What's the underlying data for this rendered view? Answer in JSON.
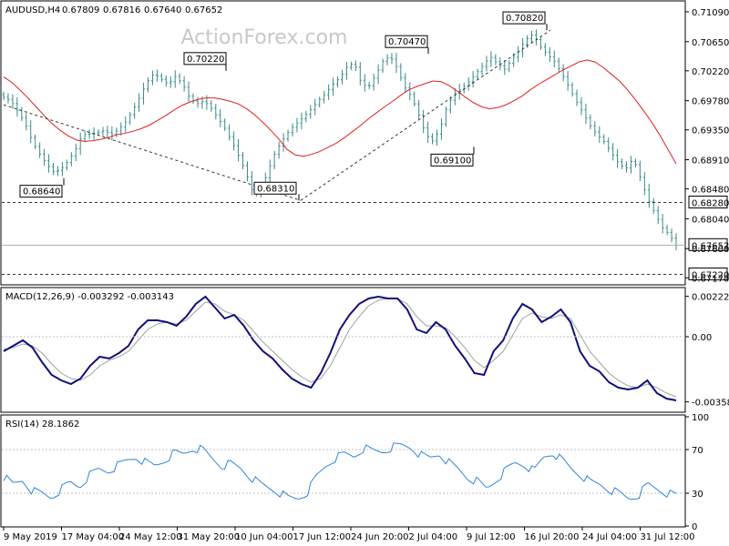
{
  "watermark": "ActionForex.com",
  "chart_data": [
    {
      "type": "candlestick",
      "symbol_label": "AUDUSD,H4",
      "ohlc_label": [
        "0.67809",
        "0.67816",
        "0.67640",
        "0.67652"
      ],
      "ylim": [
        0.6708,
        0.7121
      ],
      "yticks": [
        "0.71090",
        "0.70650",
        "0.70220",
        "0.69780",
        "0.69350",
        "0.68910",
        "0.68480",
        "0.68040",
        "0.67600",
        "0.67170"
      ],
      "y_values": [
        0.7109,
        0.7065,
        0.7022,
        0.6978,
        0.6935,
        0.6891,
        0.6848,
        0.6804,
        0.676,
        0.6717
      ],
      "close_path": [
        0.6983,
        0.6978,
        0.6962,
        0.6945,
        0.6918,
        0.69,
        0.6885,
        0.6873,
        0.6877,
        0.6889,
        0.6905,
        0.6928,
        0.6929,
        0.6931,
        0.6934,
        0.6928,
        0.6935,
        0.6946,
        0.6963,
        0.6983,
        0.7005,
        0.7018,
        0.701,
        0.7002,
        0.7014,
        0.7003,
        0.6982,
        0.6973,
        0.6978,
        0.6967,
        0.6952,
        0.6936,
        0.6916,
        0.6893,
        0.6868,
        0.6838,
        0.6848,
        0.6876,
        0.6903,
        0.692,
        0.6935,
        0.6945,
        0.6955,
        0.6966,
        0.6978,
        0.6989,
        0.7002,
        0.7012,
        0.7028,
        0.7034,
        0.7003,
        0.6998,
        0.7016,
        0.7036,
        0.7044,
        0.7026,
        0.6999,
        0.6984,
        0.6958,
        0.6928,
        0.6918,
        0.6937,
        0.6971,
        0.6988,
        0.6996,
        0.7006,
        0.7018,
        0.703,
        0.7043,
        0.7033,
        0.7024,
        0.7038,
        0.7052,
        0.7068,
        0.7076,
        0.7058,
        0.7046,
        0.7036,
        0.7018,
        0.6998,
        0.6978,
        0.696,
        0.6941,
        0.6927,
        0.6917,
        0.69,
        0.6885,
        0.6878,
        0.6893,
        0.6864,
        0.6834,
        0.6813,
        0.6792,
        0.6781,
        0.6765
      ],
      "ma_path": [
        0.7013,
        0.7005,
        0.6994,
        0.6982,
        0.6969,
        0.6956,
        0.6944,
        0.6934,
        0.6926,
        0.692,
        0.6918,
        0.6919,
        0.6921,
        0.6924,
        0.6928,
        0.693,
        0.6933,
        0.6937,
        0.6942,
        0.6949,
        0.6956,
        0.6964,
        0.6971,
        0.6976,
        0.698,
        0.6982,
        0.6982,
        0.698,
        0.6977,
        0.6973,
        0.6966,
        0.6957,
        0.6946,
        0.6934,
        0.6921,
        0.6906,
        0.6898,
        0.6896,
        0.6899,
        0.6903,
        0.6909,
        0.6915,
        0.6923,
        0.6932,
        0.6941,
        0.6951,
        0.696,
        0.6969,
        0.6977,
        0.6986,
        0.6994,
        0.6999,
        0.7003,
        0.7007,
        0.7006,
        0.7,
        0.6992,
        0.6983,
        0.6975,
        0.6969,
        0.6966,
        0.6968,
        0.6972,
        0.6978,
        0.6985,
        0.6994,
        0.7002,
        0.7009,
        0.7016,
        0.7023,
        0.7029,
        0.7035,
        0.7038,
        0.7035,
        0.7027,
        0.7017,
        0.7007,
        0.6994,
        0.6979,
        0.6963,
        0.6946,
        0.6927,
        0.6906,
        0.6885
      ],
      "annotations": [
        {
          "label": "0.68640",
          "value": 0.6864
        },
        {
          "label": "0.70220",
          "value": 0.7022
        },
        {
          "label": "0.68310",
          "value": 0.6831
        },
        {
          "label": "0.70470",
          "value": 0.7047
        },
        {
          "label": "0.69100",
          "value": 0.691
        },
        {
          "label": "0.70820",
          "value": 0.7082
        }
      ],
      "levels": [
        {
          "label": "0.68280",
          "value": 0.6828,
          "style": "dashed"
        },
        {
          "label": "0.67652",
          "value": 0.67652,
          "style": "solid"
        },
        {
          "label": "0.67220",
          "value": 0.6722,
          "style": "dashed"
        }
      ]
    },
    {
      "type": "line",
      "label": "MACD(12,26,9) -0.003292 -0.003143",
      "ylim": [
        -0.0041,
        0.0026
      ],
      "yticks": [
        "0.00222",
        "0.00",
        "-0.00358"
      ],
      "y_values": [
        0.00222,
        0.0,
        -0.00358
      ],
      "macd_path": [
        -0.0008,
        -0.0005,
        -0.0002,
        -0.0006,
        -0.0014,
        -0.0021,
        -0.0024,
        -0.0026,
        -0.0023,
        -0.0016,
        -0.0011,
        -0.0012,
        -0.0009,
        -0.0005,
        0.0004,
        0.0009,
        0.0009,
        0.0008,
        0.0006,
        0.0011,
        0.0018,
        0.0022,
        0.0016,
        0.001,
        0.0012,
        0.0006,
        -0.0002,
        -0.0008,
        -0.0012,
        -0.0018,
        -0.0023,
        -0.0026,
        -0.0028,
        -0.002,
        -0.0009,
        0.0004,
        0.0012,
        0.0018,
        0.0021,
        0.0022,
        0.0021,
        0.0021,
        0.0015,
        0.0004,
        0.0002,
        0.0008,
        0.0004,
        -0.0005,
        -0.0012,
        -0.002,
        -0.0021,
        -0.0008,
        -0.0002,
        0.001,
        0.0018,
        0.0015,
        0.0008,
        0.0011,
        0.0015,
        0.0008,
        -0.0008,
        -0.0016,
        -0.0019,
        -0.0025,
        -0.0028,
        -0.0029,
        -0.0028,
        -0.0024,
        -0.0031,
        -0.0034,
        -0.0035
      ],
      "signal_path": [
        -0.0007,
        -0.0006,
        -0.0004,
        -0.0005,
        -0.0009,
        -0.0015,
        -0.002,
        -0.0023,
        -0.0024,
        -0.0021,
        -0.0016,
        -0.0013,
        -0.0011,
        -0.0008,
        -0.0002,
        0.0004,
        0.0007,
        0.0008,
        0.0007,
        0.0009,
        0.0014,
        0.0019,
        0.0018,
        0.0014,
        0.0012,
        0.0009,
        0.0003,
        -0.0003,
        -0.0008,
        -0.0013,
        -0.0018,
        -0.0022,
        -0.0025,
        -0.0023,
        -0.0016,
        -0.0006,
        0.0004,
        0.0011,
        0.0017,
        0.002,
        0.0021,
        0.0021,
        0.0018,
        0.0011,
        0.0006,
        0.0006,
        0.0005,
        0.0,
        -0.0006,
        -0.0013,
        -0.0017,
        -0.0013,
        -0.0008,
        0.0001,
        0.001,
        0.0013,
        0.0011,
        0.001,
        0.0012,
        0.001,
        0.0001,
        -0.0008,
        -0.0014,
        -0.002,
        -0.0024,
        -0.0027,
        -0.0028,
        -0.0026,
        -0.0028,
        -0.0031,
        -0.0033
      ]
    },
    {
      "type": "line",
      "label": "RSI(14) 28.1862",
      "ylim": [
        0,
        100
      ],
      "yticks": [
        "100",
        "70",
        "30",
        "0"
      ],
      "y_values": [
        100,
        70,
        30,
        0
      ],
      "rsi_path": [
        45,
        38,
        42,
        32,
        30,
        26,
        33,
        40,
        36,
        46,
        52,
        50,
        55,
        60,
        63,
        58,
        55,
        60,
        67,
        66,
        71,
        70,
        62,
        55,
        57,
        53,
        45,
        39,
        35,
        31,
        26,
        25,
        30,
        45,
        55,
        62,
        66,
        64,
        71,
        69,
        68,
        72,
        74,
        72,
        65,
        62,
        66,
        58,
        52,
        44,
        41,
        34,
        42,
        51,
        58,
        56,
        50,
        63,
        67,
        60,
        52,
        46,
        40,
        38,
        33,
        30,
        25,
        28,
        38,
        34,
        30,
        28
      ],
      "xtick_labels": [
        "9 May 2019",
        "17 May 04:00",
        "24 May 12:00",
        "31 May 20:00",
        "10 Jun 04:00",
        "17 Jun 12:00",
        "24 Jun 20:00",
        "2 Jul 04:00",
        "9 Jul 12:00",
        "16 Jul 20:00",
        "24 Jul 04:00",
        "31 Jul 12:00"
      ]
    }
  ]
}
